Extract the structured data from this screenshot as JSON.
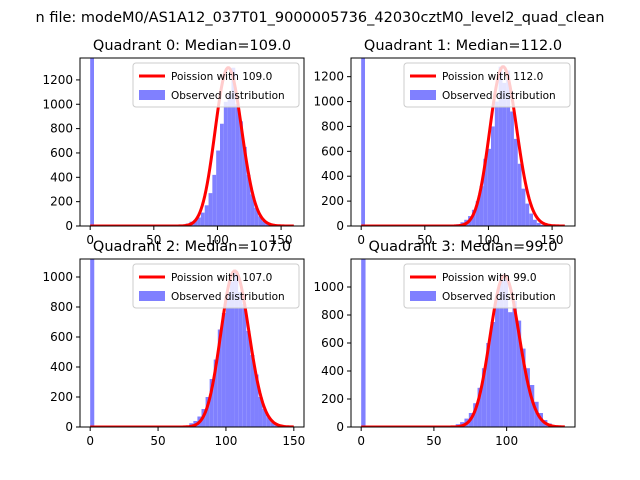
{
  "figure": {
    "suptitle": "n file: modeM0/AS1A12_037T01_9000005736_42030cztM0_level2_quad_clean"
  },
  "colors": {
    "histogram": "#8080ff",
    "curve": "#ff0000",
    "curve_highlight": "#ff8080"
  },
  "chart_data": [
    {
      "type": "bar",
      "title": "Quadrant 0: Median=109.0",
      "xlim": [
        -8,
        168
      ],
      "ylim": [
        0,
        1380
      ],
      "xticks": [
        0,
        50,
        100,
        150
      ],
      "yticks": [
        0,
        200,
        400,
        600,
        800,
        1000,
        1200
      ],
      "series": [
        {
          "name": "Poission with 109.0",
          "kind": "line",
          "mean": 109.0,
          "x_range": [
            0,
            160
          ]
        },
        {
          "name": "Observed distribution",
          "kind": "histogram",
          "bins": [
            [
              0,
              1380
            ],
            [
              75,
              20
            ],
            [
              78,
              35
            ],
            [
              81,
              50
            ],
            [
              84,
              70
            ],
            [
              87,
              110
            ],
            [
              90,
              170
            ],
            [
              93,
              270
            ],
            [
              96,
              420
            ],
            [
              99,
              620
            ],
            [
              102,
              840
            ],
            [
              105,
              1020
            ],
            [
              108,
              1080
            ],
            [
              111,
              1300
            ],
            [
              114,
              1000
            ],
            [
              117,
              860
            ],
            [
              120,
              650
            ],
            [
              123,
              420
            ],
            [
              126,
              260
            ],
            [
              129,
              150
            ],
            [
              132,
              80
            ],
            [
              135,
              40
            ],
            [
              138,
              20
            ],
            [
              141,
              8
            ]
          ]
        }
      ]
    },
    {
      "type": "bar",
      "title": "Quadrant 1: Median=112.0",
      "xlim": [
        -8,
        168
      ],
      "ylim": [
        0,
        1350
      ],
      "xticks": [
        0,
        50,
        100,
        150
      ],
      "yticks": [
        0,
        200,
        400,
        600,
        800,
        1000,
        1200
      ],
      "series": [
        {
          "name": "Poission with 112.0",
          "kind": "line",
          "mean": 112.0,
          "x_range": [
            0,
            160
          ]
        },
        {
          "name": "Observed distribution",
          "kind": "histogram",
          "bins": [
            [
              0,
              1350
            ],
            [
              75,
              15
            ],
            [
              78,
              30
            ],
            [
              81,
              50
            ],
            [
              84,
              80
            ],
            [
              87,
              130
            ],
            [
              90,
              200
            ],
            [
              93,
              320
            ],
            [
              96,
              540
            ],
            [
              99,
              620
            ],
            [
              102,
              800
            ],
            [
              105,
              1000
            ],
            [
              108,
              1280
            ],
            [
              111,
              1150
            ],
            [
              114,
              1250
            ],
            [
              117,
              920
            ],
            [
              120,
              700
            ],
            [
              123,
              500
            ],
            [
              126,
              300
            ],
            [
              129,
              180
            ],
            [
              132,
              100
            ],
            [
              135,
              50
            ],
            [
              138,
              25
            ],
            [
              141,
              10
            ]
          ]
        }
      ]
    },
    {
      "type": "bar",
      "title": "Quadrant 2: Median=107.0",
      "xlim": [
        -7.5,
        157.5
      ],
      "ylim": [
        0,
        1120
      ],
      "xticks": [
        0,
        50,
        100,
        150
      ],
      "yticks": [
        0,
        200,
        400,
        600,
        800,
        1000
      ],
      "series": [
        {
          "name": "Poission with 107.0",
          "kind": "line",
          "mean": 107.0,
          "x_range": [
            0,
            150
          ]
        },
        {
          "name": "Observed distribution",
          "kind": "histogram",
          "bins": [
            [
              0,
              1120
            ],
            [
              70,
              10
            ],
            [
              73,
              25
            ],
            [
              76,
              40
            ],
            [
              79,
              70
            ],
            [
              82,
              120
            ],
            [
              85,
              200
            ],
            [
              88,
              320
            ],
            [
              91,
              450
            ],
            [
              94,
              650
            ],
            [
              97,
              760
            ],
            [
              100,
              900
            ],
            [
              103,
              970
            ],
            [
              106,
              1040
            ],
            [
              109,
              900
            ],
            [
              112,
              820
            ],
            [
              115,
              640
            ],
            [
              118,
              480
            ],
            [
              121,
              350
            ],
            [
              124,
              200
            ],
            [
              127,
              120
            ],
            [
              130,
              65
            ],
            [
              133,
              30
            ],
            [
              136,
              12
            ],
            [
              139,
              5
            ]
          ]
        }
      ]
    },
    {
      "type": "bar",
      "title": "Quadrant 3: Median=99.0",
      "xlim": [
        -7,
        147
      ],
      "ylim": [
        0,
        1200
      ],
      "xticks": [
        0,
        50,
        100
      ],
      "yticks": [
        0,
        200,
        400,
        600,
        800,
        1000
      ],
      "series": [
        {
          "name": "Poission with 99.0",
          "kind": "line",
          "mean": 99.0,
          "x_range": [
            0,
            140
          ]
        },
        {
          "name": "Observed distribution",
          "kind": "histogram",
          "bins": [
            [
              0,
              1200
            ],
            [
              62,
              10
            ],
            [
              65,
              20
            ],
            [
              68,
              35
            ],
            [
              71,
              60
            ],
            [
              74,
              100
            ],
            [
              77,
              170
            ],
            [
              80,
              280
            ],
            [
              83,
              420
            ],
            [
              86,
              600
            ],
            [
              89,
              750
            ],
            [
              92,
              920
            ],
            [
              95,
              1080
            ],
            [
              98,
              1050
            ],
            [
              101,
              820
            ],
            [
              104,
              900
            ],
            [
              107,
              760
            ],
            [
              110,
              560
            ],
            [
              113,
              420
            ],
            [
              116,
              300
            ],
            [
              119,
              180
            ],
            [
              122,
              100
            ],
            [
              125,
              50
            ],
            [
              128,
              25
            ],
            [
              131,
              8
            ]
          ]
        }
      ]
    }
  ]
}
